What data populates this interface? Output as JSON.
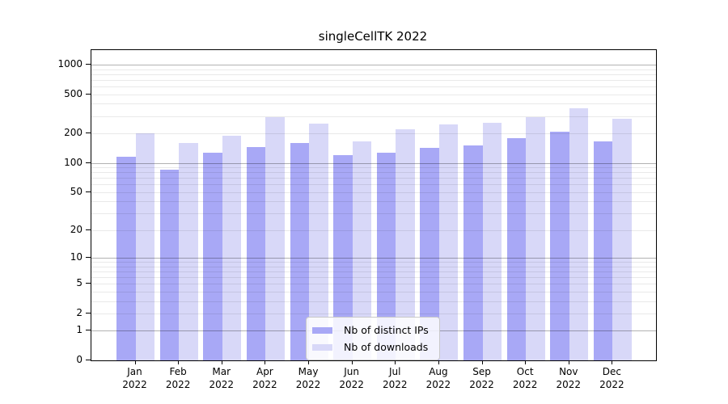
{
  "title": "singleCellTK 2022",
  "chart_data": {
    "type": "bar",
    "title": "singleCellTK 2022",
    "categories": [
      "Jan",
      "Feb",
      "Mar",
      "Apr",
      "May",
      "Jun",
      "Jul",
      "Aug",
      "Sep",
      "Oct",
      "Nov",
      "Dec"
    ],
    "category_year": "2022",
    "series": [
      {
        "name": "Nb of distinct IPs",
        "key": "distinct-ips",
        "color": "#a8a8f6",
        "values": [
          115,
          85,
          128,
          145,
          160,
          120,
          127,
          143,
          150,
          180,
          208,
          165
        ]
      },
      {
        "name": "Nb of downloads",
        "key": "downloads",
        "color": "#d8d8f8",
        "values": [
          200,
          160,
          188,
          290,
          250,
          166,
          222,
          245,
          257,
          290,
          358,
          280
        ]
      }
    ],
    "yscale": "log10(value+1)",
    "ylim": [
      0,
      1000
    ],
    "ytick_labels": [
      0,
      1,
      2,
      5,
      10,
      20,
      50,
      100,
      200,
      500,
      1000
    ],
    "grid": "horizontal major+minor, drawn over bars",
    "legend_position": "bottom-center"
  },
  "legend": {
    "items": [
      {
        "label": "Nb of distinct IPs",
        "swatch": "#a8a8f6"
      },
      {
        "label": "Nb of downloads",
        "swatch": "#d8d8f8"
      }
    ]
  },
  "colors": {
    "bar_primary": "#a8a8f6",
    "bar_secondary": "#d8d8f8",
    "grid_major": "#b0b0b0",
    "grid_minor": "#e8e8e8",
    "axis": "#000000",
    "background": "#ffffff"
  }
}
